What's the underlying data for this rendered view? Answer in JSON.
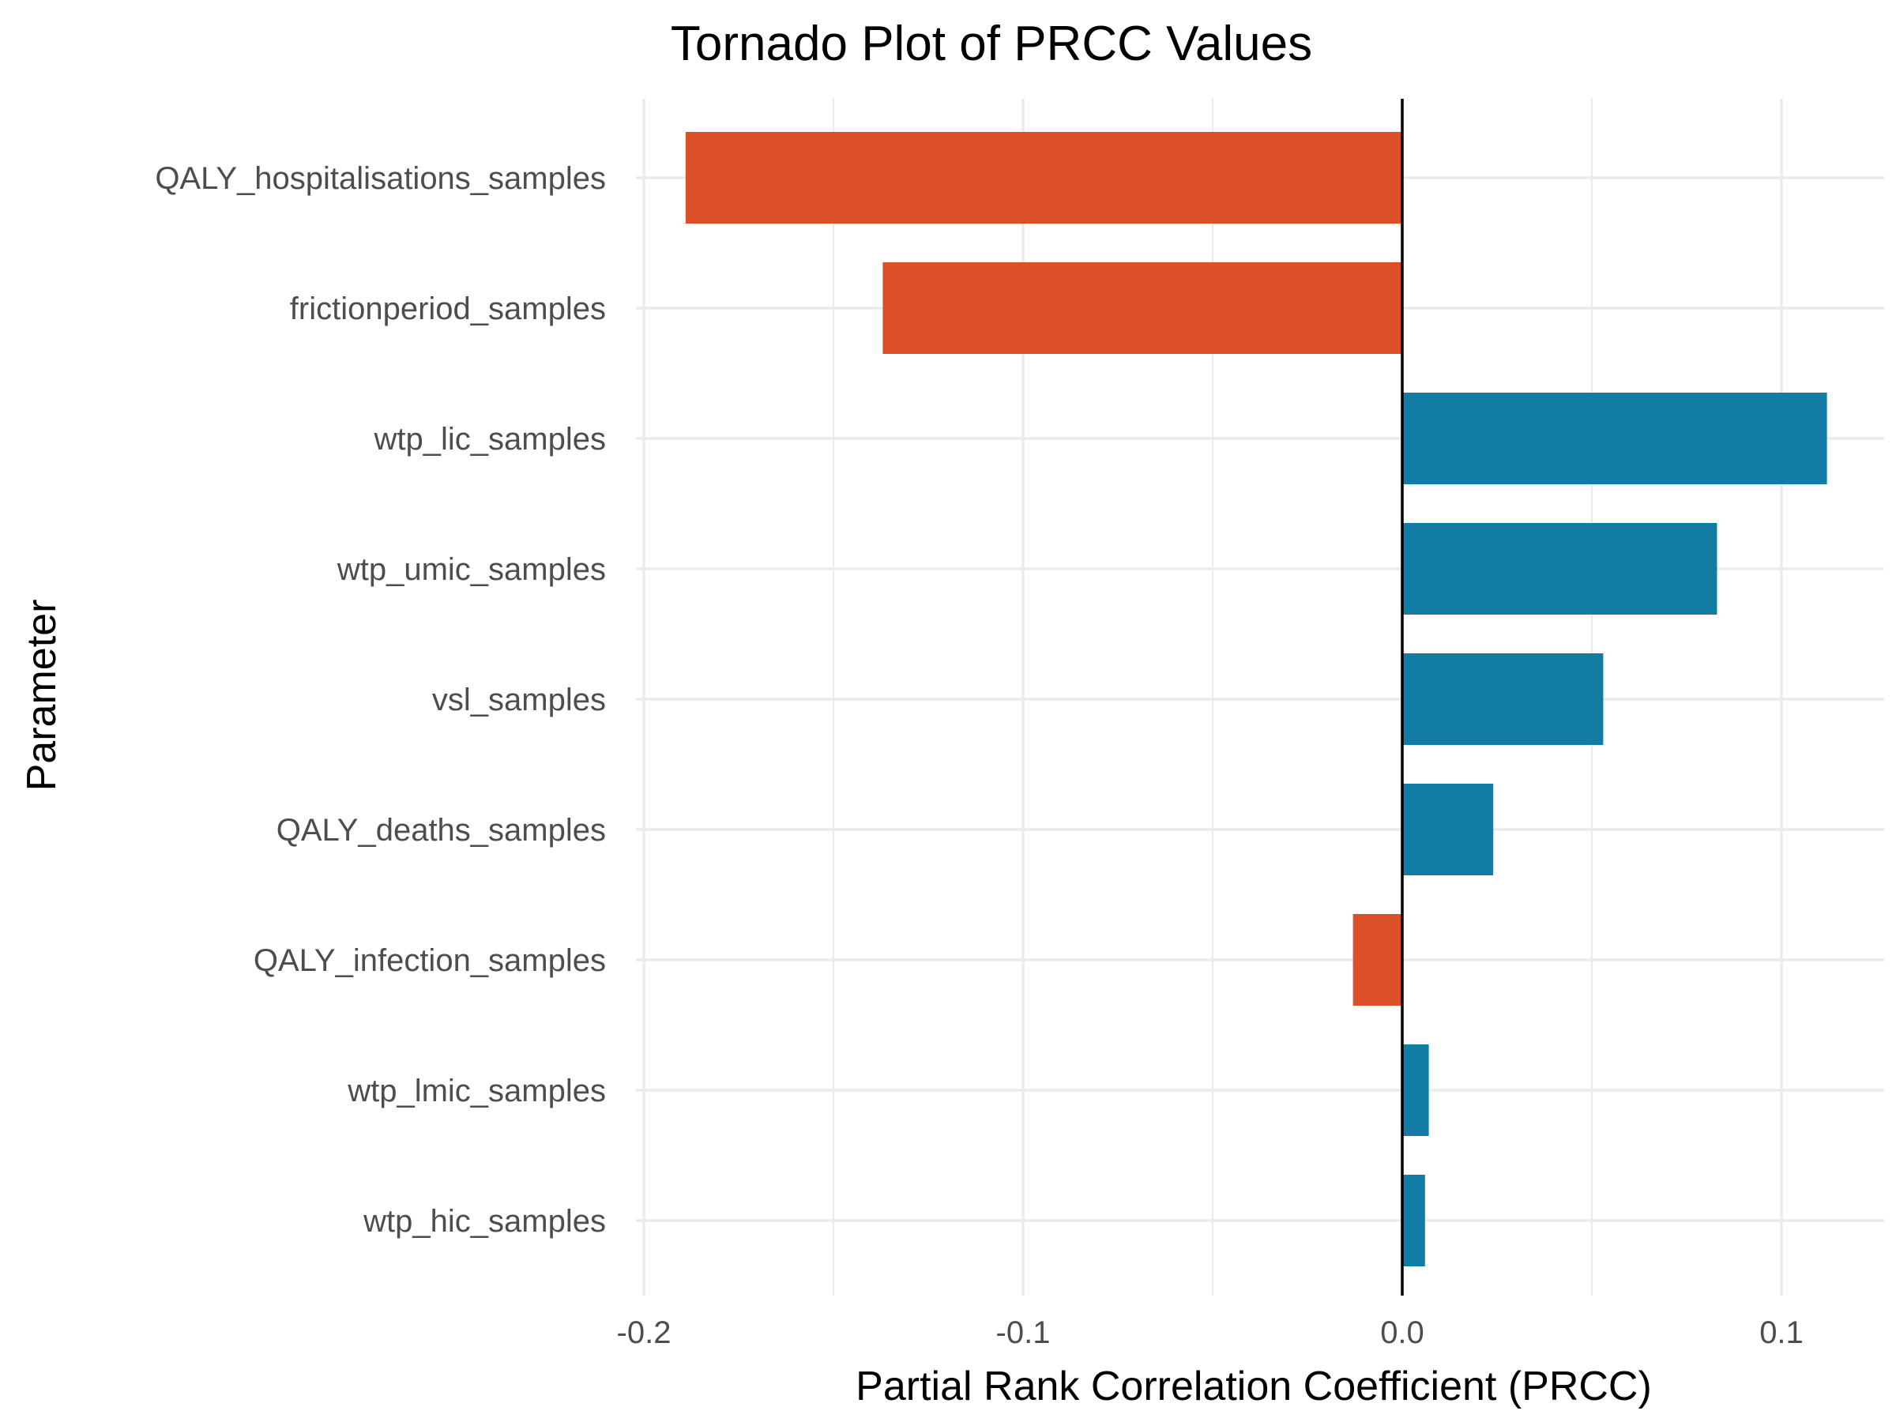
{
  "chart_data": {
    "type": "bar",
    "orientation": "horizontal",
    "title": "Tornado Plot of PRCC Values",
    "xlabel": "Partial Rank Correlation Coefficient (PRCC)",
    "ylabel": "Parameter",
    "xlim": [
      -0.2,
      0.125
    ],
    "xticks": [
      -0.2,
      -0.1,
      0.0,
      0.1
    ],
    "xtick_labels": [
      "-0.2",
      "-0.1",
      "0.0",
      "0.1"
    ],
    "grid": true,
    "legend": "none",
    "colors": {
      "negative": "#dc5029",
      "positive": "#127ca4",
      "zero_line": "#000000",
      "grid": "#ebebeb"
    },
    "categories": [
      "QALY_hospitalisations_samples",
      "frictionperiod_samples",
      "wtp_lic_samples",
      "wtp_umic_samples",
      "vsl_samples",
      "QALY_deaths_samples",
      "QALY_infection_samples",
      "wtp_lmic_samples",
      "wtp_hic_samples"
    ],
    "values": [
      -0.189,
      -0.137,
      0.112,
      0.083,
      0.053,
      0.024,
      -0.013,
      0.007,
      0.006
    ]
  }
}
